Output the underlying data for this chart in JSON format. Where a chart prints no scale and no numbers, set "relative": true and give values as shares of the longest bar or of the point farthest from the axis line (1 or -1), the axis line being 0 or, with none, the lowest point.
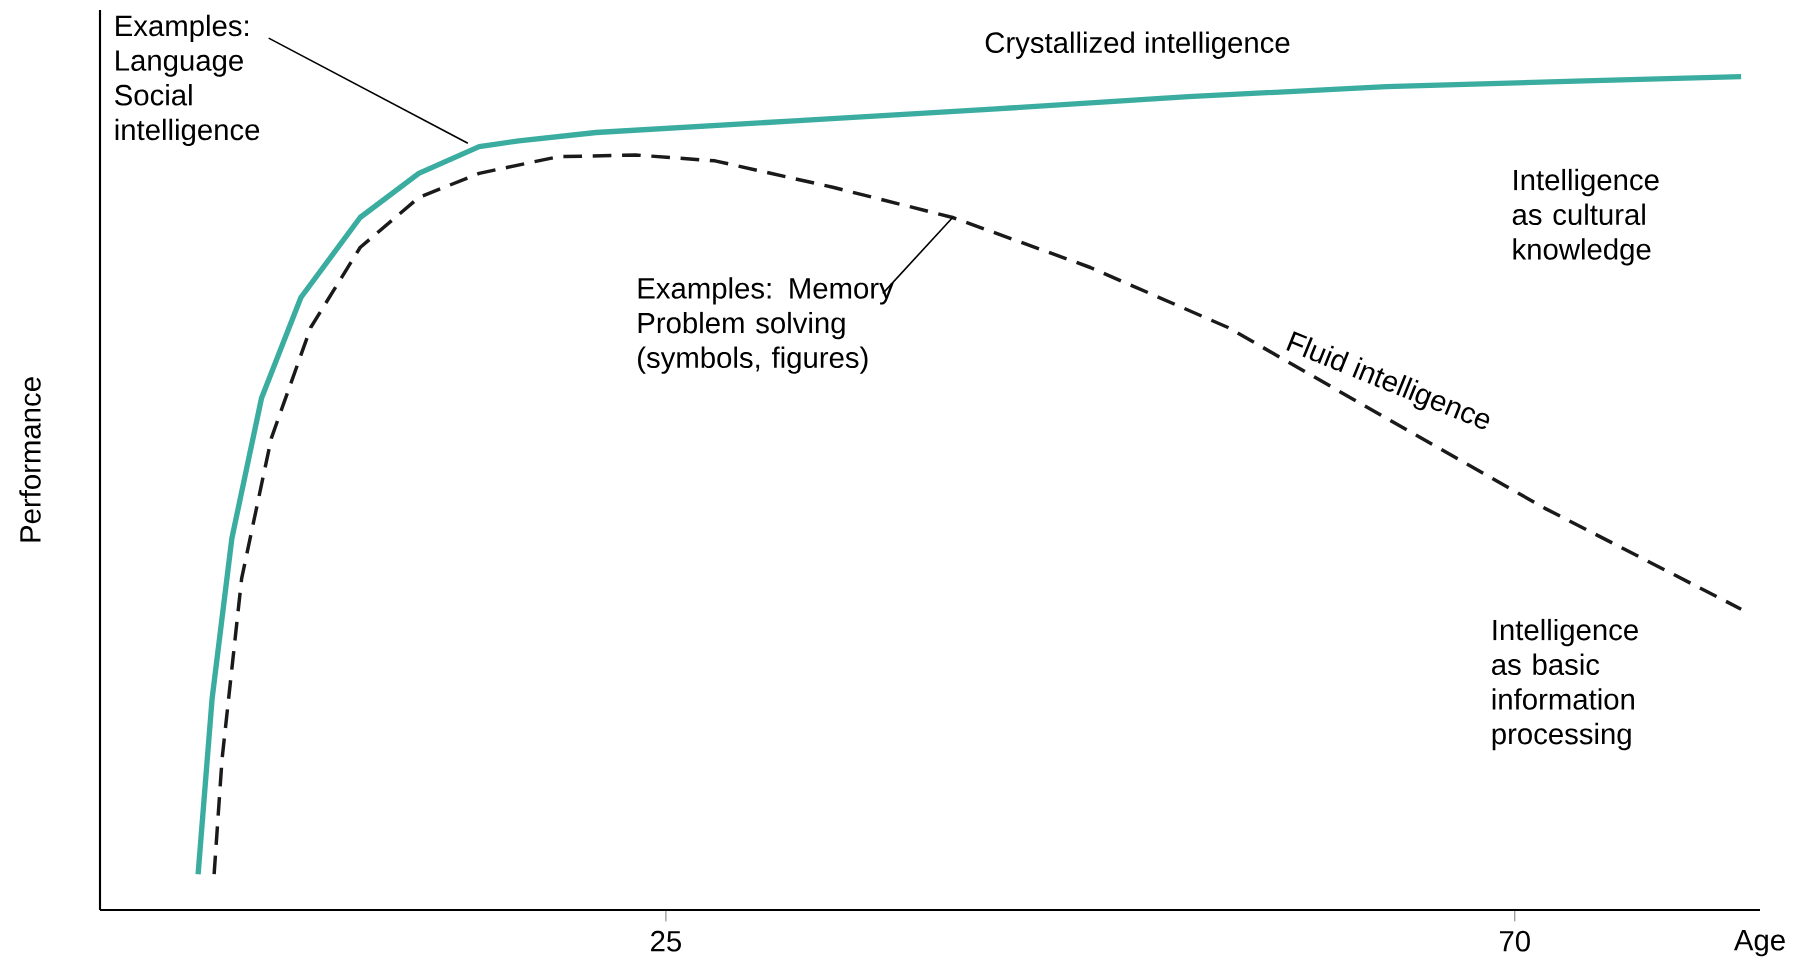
{
  "chart_data": {
    "type": "line",
    "relative": true,
    "xlabel": "Age",
    "ylabel": "Performance",
    "xlim": [
      -5,
      83
    ],
    "xticks": [
      25,
      70
    ],
    "series": [
      {
        "name": "Crystallized intelligence",
        "color": "#3aada0",
        "line_style": "solid",
        "x": [
          0.2,
          0.94,
          1.99,
          3.56,
          5.65,
          8.79,
          11.9,
          15.1,
          17.2,
          21.3,
          31.8,
          42.3,
          52.7,
          63.2,
          73.7,
          82
        ],
        "values": [
          0.043,
          0.253,
          0.446,
          0.614,
          0.735,
          0.831,
          0.884,
          0.916,
          0.923,
          0.933,
          0.947,
          0.961,
          0.976,
          0.988,
          0.995,
          1
        ]
      },
      {
        "name": "Fluid intelligence",
        "color": "#1a1a1a",
        "line_style": "dashed",
        "x": [
          1.05,
          1.47,
          2.51,
          4.08,
          6.17,
          8.79,
          11.9,
          15.1,
          19.3,
          23.4,
          27.6,
          33.9,
          40.2,
          47.5,
          54.8,
          63.2,
          71.6,
          82
        ],
        "values": [
          0.043,
          0.181,
          0.398,
          0.566,
          0.699,
          0.795,
          0.855,
          0.884,
          0.904,
          0.906,
          0.899,
          0.867,
          0.831,
          0.771,
          0.699,
          0.59,
          0.482,
          0.361
        ]
      }
    ],
    "annotations": [
      {
        "text": "Examples: Language Social intelligence",
        "x": 14.5,
        "y": 0.92
      },
      {
        "text": "Examples: Memory Problem solving (symbols, figures)",
        "x": 40.2,
        "y": 0.831
      },
      "Intelligence as cultural knowledge",
      "Intelligence as basic information processing"
    ]
  }
}
